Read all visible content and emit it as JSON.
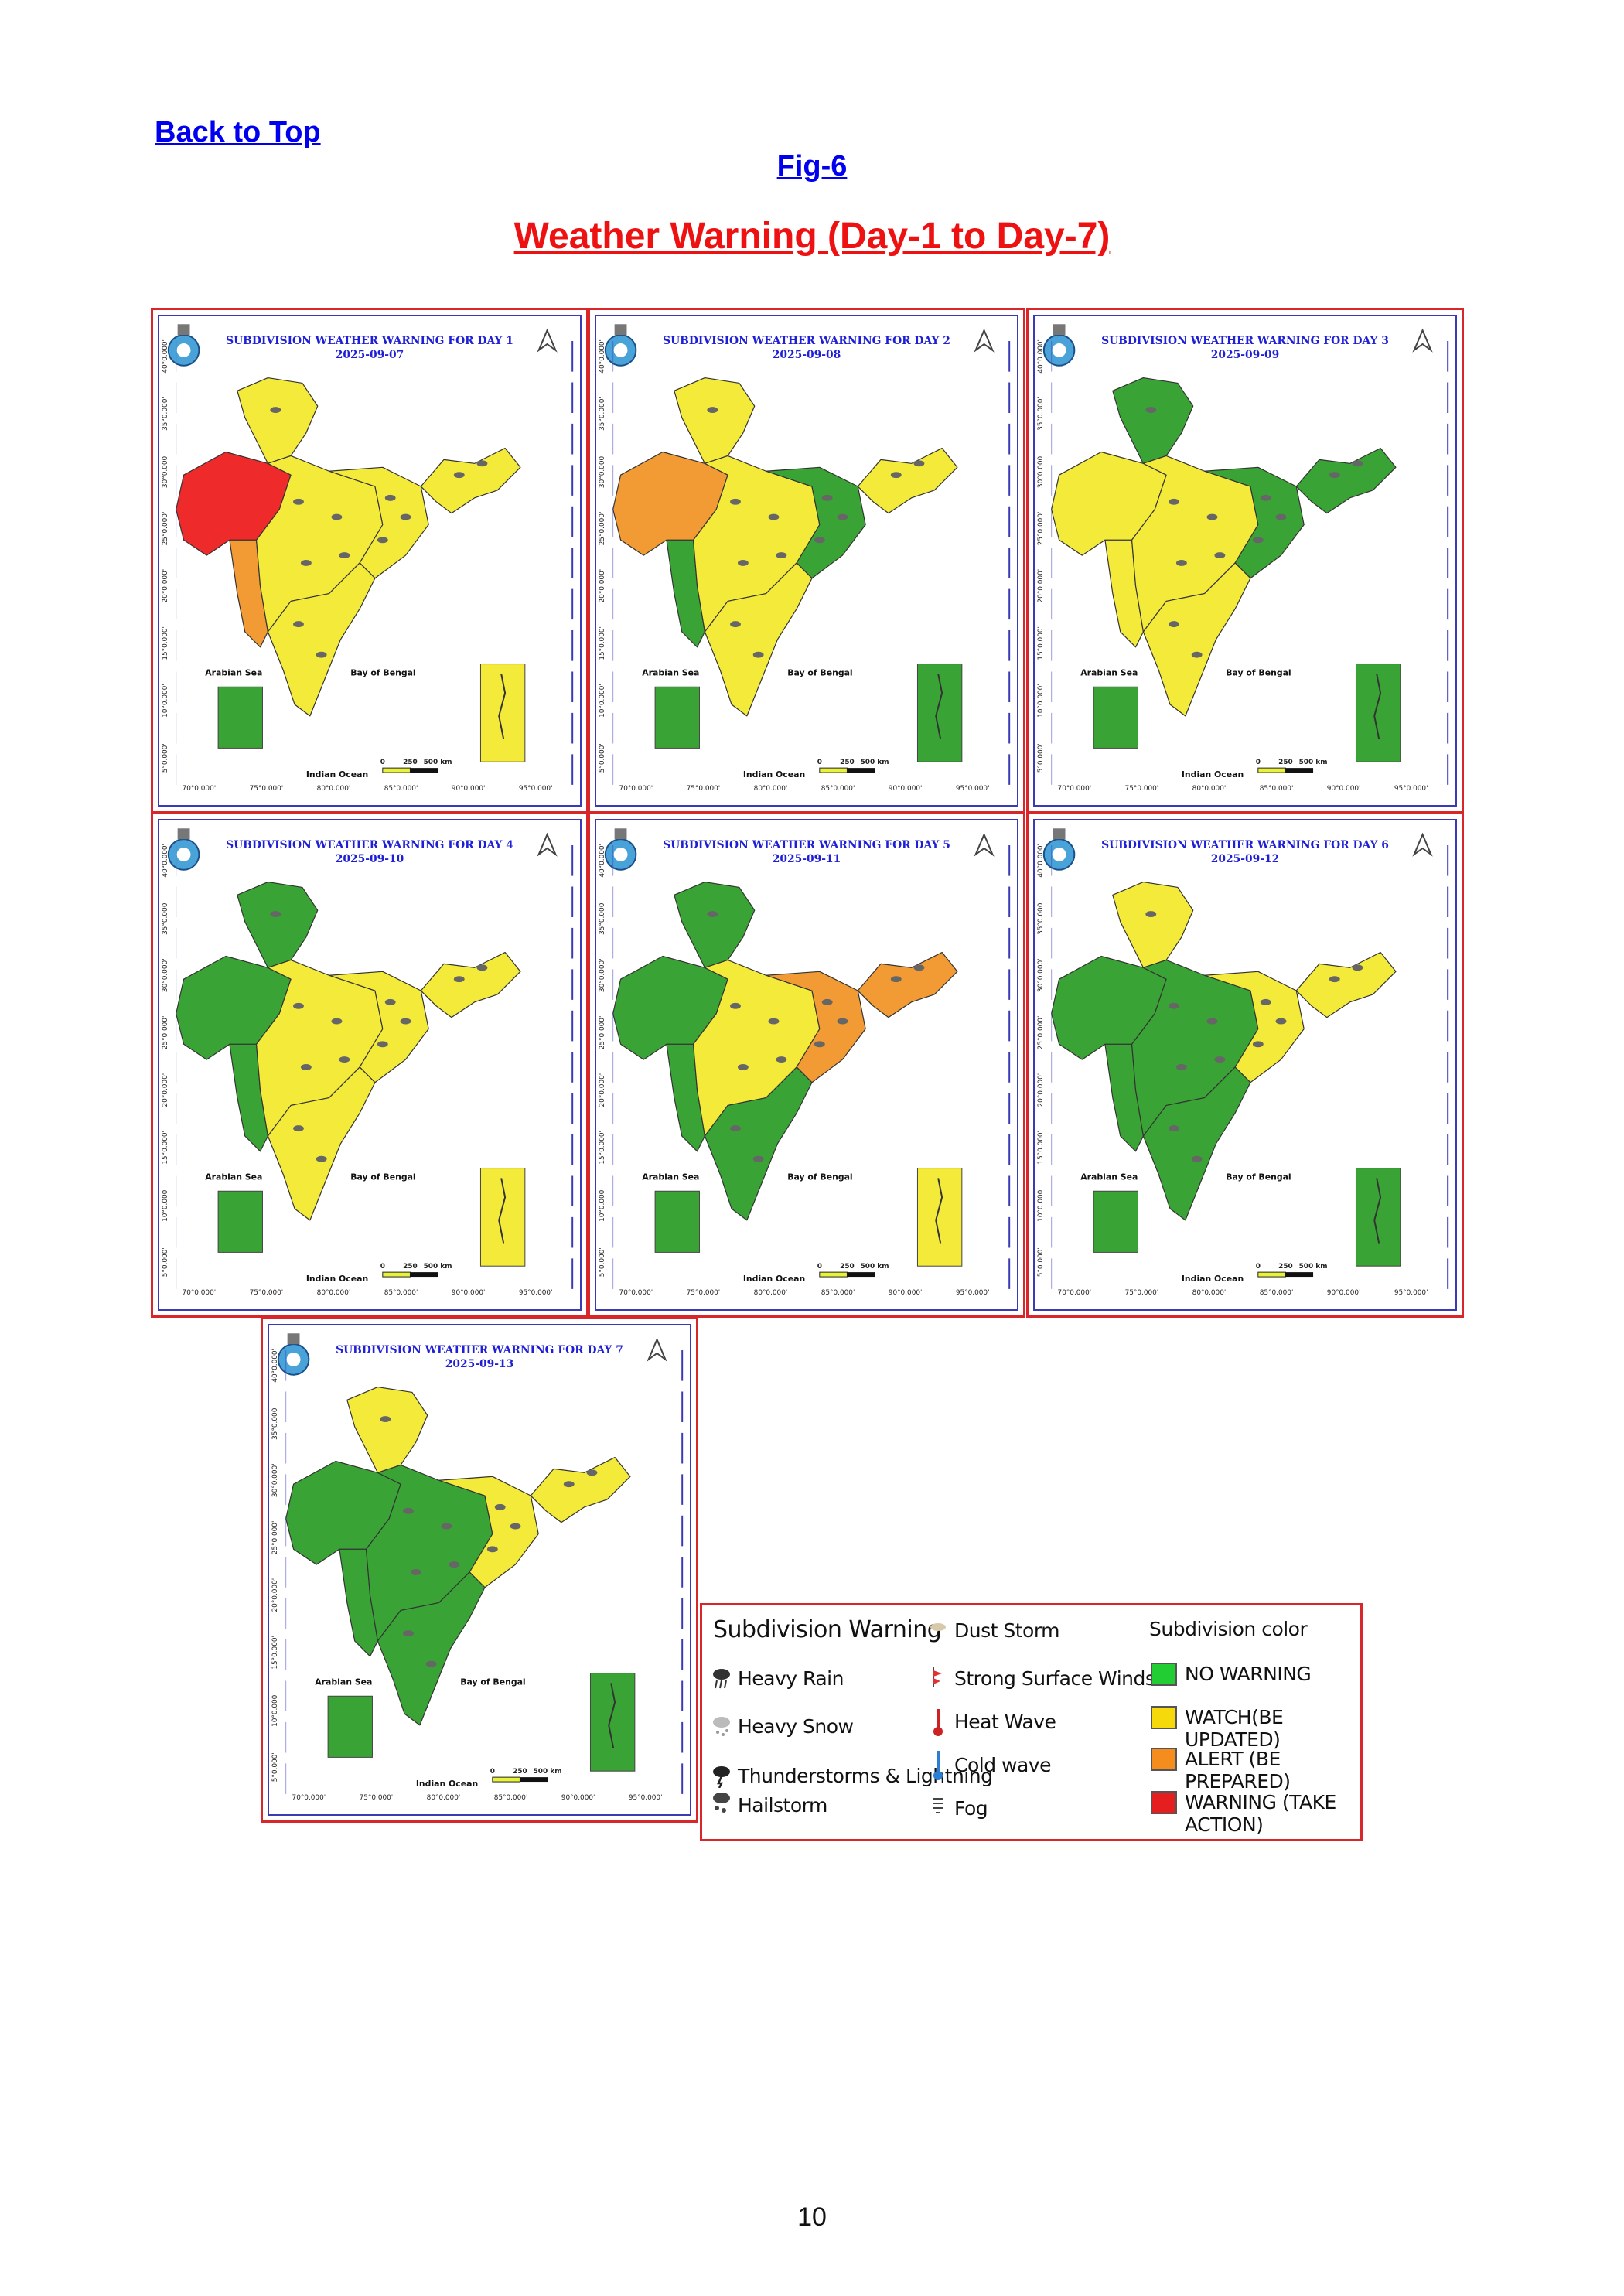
{
  "nav": {
    "back_to_top": "Back to Top"
  },
  "figure": {
    "label": "Fig-6",
    "title": "Weather Warning (Day-1 to Day-7)"
  },
  "panels": [
    {
      "title": "SUBDIVISION WEATHER WARNING FOR DAY 1",
      "date": "2025-09-07"
    },
    {
      "title": "SUBDIVISION WEATHER WARNING FOR DAY 2",
      "date": "2025-09-08"
    },
    {
      "title": "SUBDIVISION WEATHER WARNING FOR DAY 3",
      "date": "2025-09-09"
    },
    {
      "title": "SUBDIVISION WEATHER WARNING FOR DAY 4",
      "date": "2025-09-10"
    },
    {
      "title": "SUBDIVISION WEATHER WARNING FOR DAY 5",
      "date": "2025-09-11"
    },
    {
      "title": "SUBDIVISION WEATHER WARNING FOR DAY 6",
      "date": "2025-09-12"
    },
    {
      "title": "SUBDIVISION WEATHER WARNING FOR DAY 7",
      "date": "2025-09-13"
    }
  ],
  "map_labels": {
    "arabian_sea": "Arabian Sea",
    "bay_of_bengal": "Bay of Bengal",
    "indian_ocean": "Indian Ocean",
    "scale": [
      "0",
      "250",
      "500 km"
    ],
    "lon_ticks": [
      "70°0.000'",
      "75°0.000'",
      "80°0.000'",
      "85°0.000'",
      "90°0.000'",
      "95°0.000'"
    ],
    "lat_ticks": [
      "40°0.000'",
      "35°0.000'",
      "30°0.000'",
      "25°0.000'",
      "20°0.000'",
      "15°0.000'",
      "10°0.000'",
      "5°0.000'"
    ]
  },
  "legend": {
    "warning_heading": "Subdivision Warning",
    "warning_items": [
      "Heavy Rain",
      "Heavy Snow",
      "Thunderstorms & Lightning",
      "Hailstorm",
      "Dust Storm",
      "Strong Surface Winds",
      "Heat Wave",
      "Cold wave",
      "Fog"
    ],
    "color_heading": "Subdivision color",
    "color_items": [
      {
        "label": "NO WARNING",
        "color": "#22cc33"
      },
      {
        "label": "WATCH(BE UPDATED)",
        "color": "#f5d90a"
      },
      {
        "label": "ALERT (BE PREPARED)",
        "color": "#f58d1e"
      },
      {
        "label": "WARNING (TAKE ACTION)",
        "color": "#e51f1f"
      }
    ]
  },
  "map_colors": {
    "green": "#3aa335",
    "yellow": "#f4ea3a",
    "orange": "#f29a33",
    "red": "#ef2a2a"
  },
  "page_number": "10"
}
